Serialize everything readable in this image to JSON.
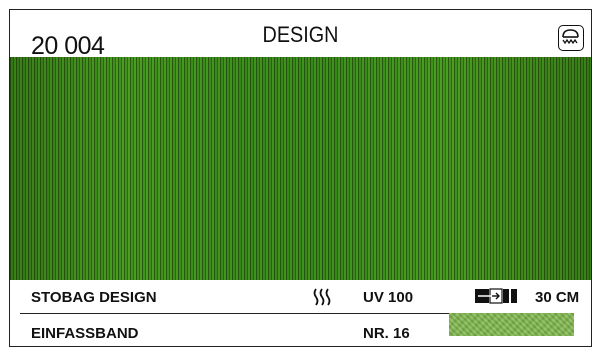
{
  "header": {
    "code": "20 004",
    "title": "DESIGN"
  },
  "info_rows": [
    {
      "label": "STOBAG DESIGN",
      "uv_label": "UV 100",
      "width_label": "30 CM"
    },
    {
      "label": "EINFASSBAND",
      "number_label": "NR. 16"
    }
  ],
  "icons": {
    "header_icon": "awning-icon",
    "uv_icon": "heat-waves-icon",
    "width_icon": "width-arrow-icon"
  },
  "colors": {
    "fabric_base": "#7dbb52",
    "border_band": "#7db64a"
  }
}
